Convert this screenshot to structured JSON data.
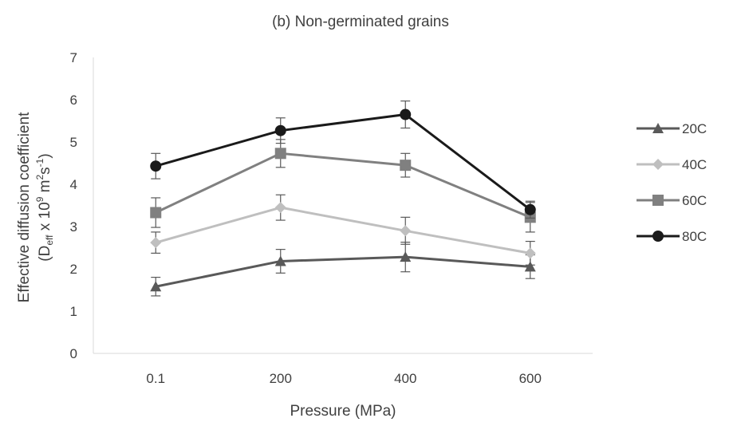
{
  "chart_data": {
    "type": "line",
    "title": "(b) Non-germinated grains",
    "xlabel": "Pressure (MPa)",
    "ylabel": {
      "line1": "Effective diffusion coefficient",
      "line2_open": "(D",
      "line2_sub": "eff",
      "line2_mid": " x 10",
      "line2_sup1": "9",
      "line2_mid2": " m",
      "line2_sup2": "2",
      "line2_mid3": "s",
      "line2_sup3": "-1",
      "line2_close": ")"
    },
    "categories": [
      "0.1",
      "200",
      "400",
      "600"
    ],
    "ylim": [
      0,
      7
    ],
    "yticks": [
      "0",
      "1",
      "2",
      "3",
      "4",
      "5",
      "6",
      "7"
    ],
    "grid": false,
    "legend_position": "right",
    "series": [
      {
        "name": "20C",
        "marker": "triangle",
        "color": "#595959",
        "values": [
          1.58,
          2.18,
          2.28,
          2.05
        ],
        "errors": [
          0.22,
          0.28,
          0.35,
          0.28
        ]
      },
      {
        "name": "40C",
        "marker": "diamond",
        "color": "#bfbfbf",
        "values": [
          2.62,
          3.45,
          2.9,
          2.37
        ],
        "errors": [
          0.25,
          0.3,
          0.32,
          0.28
        ]
      },
      {
        "name": "60C",
        "marker": "square",
        "color": "#808080",
        "values": [
          3.33,
          4.73,
          4.45,
          3.22
        ],
        "errors": [
          0.35,
          0.33,
          0.28,
          0.35
        ]
      },
      {
        "name": "80C",
        "marker": "circle",
        "color": "#1a1a1a",
        "values": [
          4.43,
          5.27,
          5.65,
          3.4
        ],
        "errors": [
          0.3,
          0.3,
          0.32,
          0.2
        ]
      }
    ]
  }
}
